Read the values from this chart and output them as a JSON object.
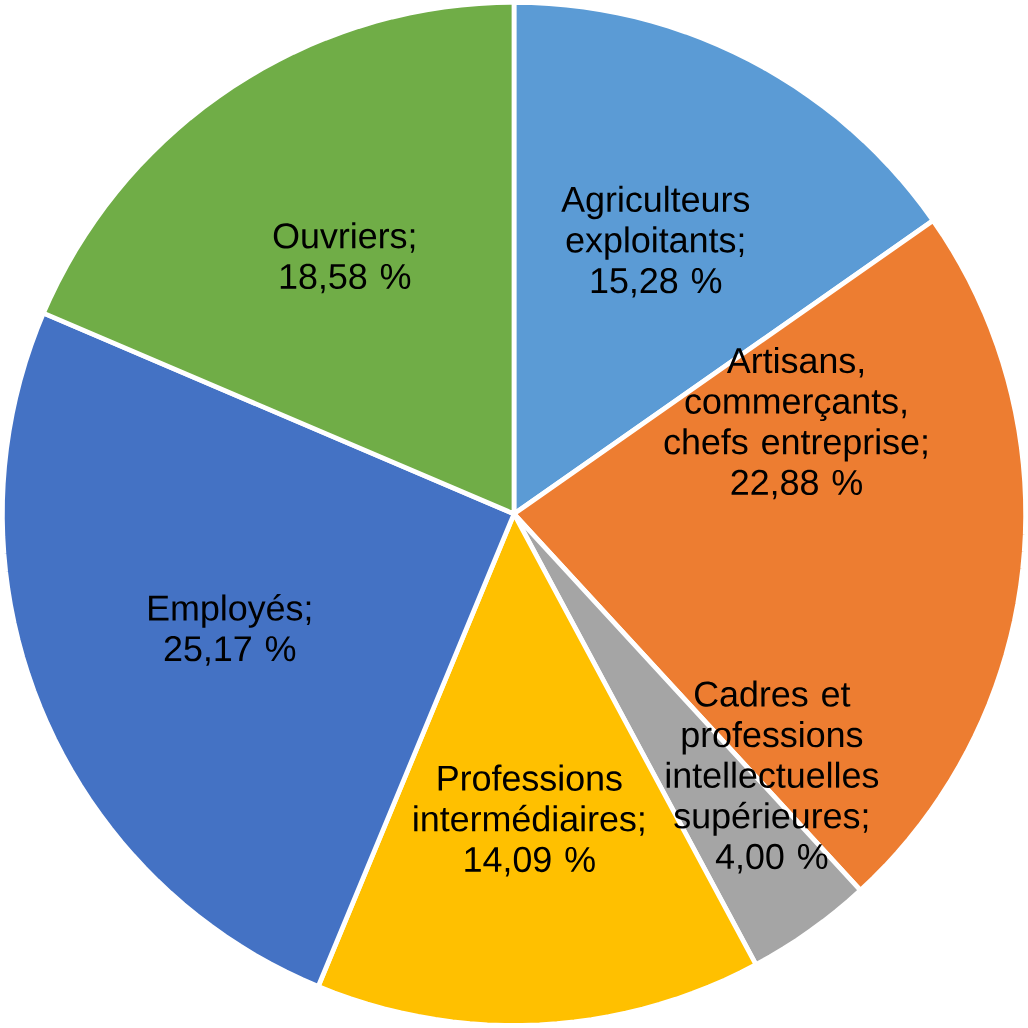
{
  "chart_data": {
    "type": "pie",
    "categories": [
      "Agriculteurs exploitants; 15,28 %",
      "Artisans, commerçants, chefs entreprise; 22,88 %",
      "Cadres et professions intellectuelles supérieures; 4,00 %",
      "Professions intermédiaires; 14,09 %",
      "Employés; 25,17 %",
      "Ouvriers; 18,58 %"
    ],
    "values": [
      15.28,
      22.88,
      4.0,
      14.09,
      25.17,
      18.58
    ],
    "colors": [
      "#5b9bd5",
      "#ed7d31",
      "#a5a5a5",
      "#ffc000",
      "#4472c4",
      "#70ad47"
    ]
  }
}
